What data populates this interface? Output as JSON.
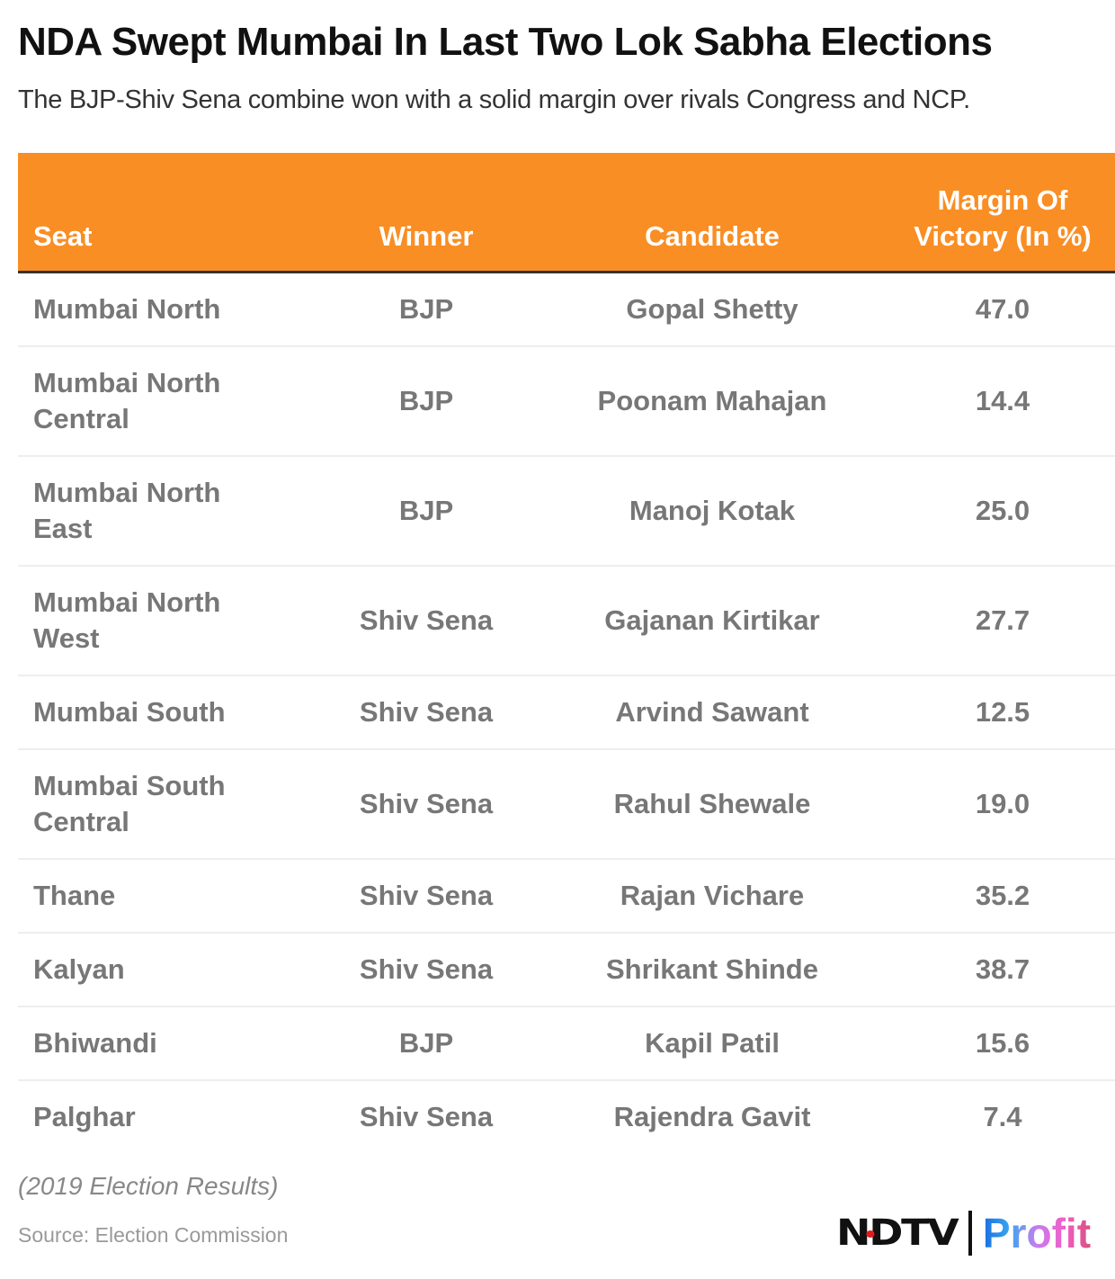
{
  "header": {
    "title": "NDA Swept Mumbai In Last Two Lok Sabha Elections",
    "subtitle": "The BJP-Shiv Sena combine won with a solid margin over rivals Congress and NCP."
  },
  "chart_data": {
    "type": "table",
    "title": "NDA Swept Mumbai In Last Two Lok Sabha Elections",
    "columns": [
      "Seat",
      "Winner",
      "Candidate",
      "Margin Of Victory (In %)"
    ],
    "rows": [
      [
        "Mumbai North",
        "BJP",
        "Gopal Shetty",
        "47.0"
      ],
      [
        "Mumbai North Central",
        "BJP",
        "Poonam Mahajan",
        "14.4"
      ],
      [
        "Mumbai North East",
        "BJP",
        "Manoj Kotak",
        "25.0"
      ],
      [
        "Mumbai North West",
        "Shiv Sena",
        "Gajanan Kirtikar",
        "27.7"
      ],
      [
        "Mumbai South",
        "Shiv Sena",
        "Arvind Sawant",
        "12.5"
      ],
      [
        "Mumbai South Central",
        "Shiv Sena",
        "Rahul Shewale",
        "19.0"
      ],
      [
        "Thane",
        "Shiv Sena",
        "Rajan Vichare",
        "35.2"
      ],
      [
        "Kalyan",
        "Shiv Sena",
        "Shrikant Shinde",
        "38.7"
      ],
      [
        "Bhiwandi",
        "BJP",
        "Kapil Patil",
        "15.6"
      ],
      [
        "Palghar",
        "Shiv Sena",
        "Rajendra Gavit",
        "7.4"
      ]
    ],
    "header_color": "#f98e24"
  },
  "footer": {
    "note": "(2019 Election Results)",
    "source": "Source: Election Commission",
    "logo_left": "NDTV",
    "logo_right": "Profit"
  }
}
